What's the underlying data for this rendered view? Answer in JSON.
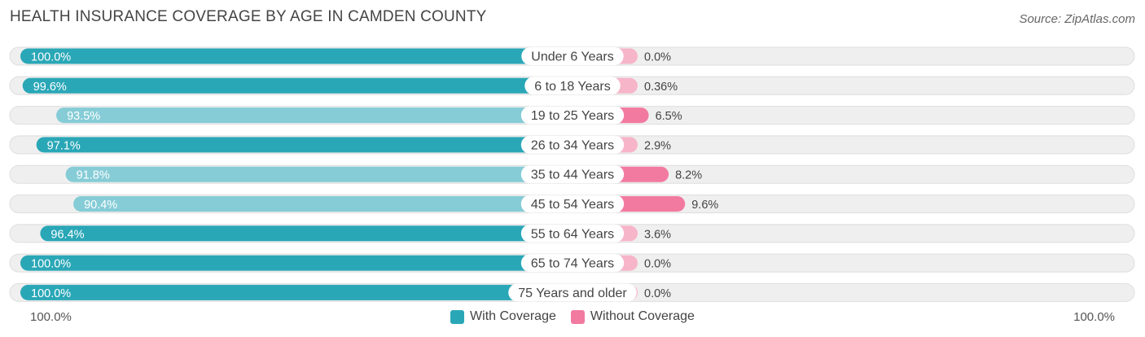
{
  "header": {
    "title": "HEALTH INSURANCE COVERAGE BY AGE IN CAMDEN COUNTY",
    "source": "Source: ZipAtlas.com"
  },
  "colors": {
    "with_strong": "#2aa7b7",
    "with_light": "#85ccd6",
    "without_strong": "#f27aa0",
    "without_light": "#f7b5c9",
    "row_bg": "#efefef",
    "row_border": "#dedede"
  },
  "chart_data": {
    "type": "bar",
    "orientation": "horizontal-diverging",
    "title": "HEALTH INSURANCE COVERAGE BY AGE IN CAMDEN COUNTY",
    "categories": [
      "Under 6 Years",
      "6 to 18 Years",
      "19 to 25 Years",
      "26 to 34 Years",
      "35 to 44 Years",
      "45 to 54 Years",
      "55 to 64 Years",
      "65 to 74 Years",
      "75 Years and older"
    ],
    "series": [
      {
        "name": "With Coverage",
        "values": [
          100.0,
          99.6,
          93.5,
          97.1,
          91.8,
          90.4,
          96.4,
          100.0,
          100.0
        ],
        "labels": [
          "100.0%",
          "99.6%",
          "93.5%",
          "97.1%",
          "91.8%",
          "90.4%",
          "96.4%",
          "100.0%",
          "100.0%"
        ]
      },
      {
        "name": "Without Coverage",
        "values": [
          0.0,
          0.36,
          6.5,
          2.9,
          8.2,
          9.6,
          3.6,
          0.0,
          0.0
        ],
        "labels": [
          "0.0%",
          "0.36%",
          "6.5%",
          "2.9%",
          "8.2%",
          "9.6%",
          "3.6%",
          "0.0%",
          "0.0%"
        ]
      }
    ],
    "axis": {
      "left_label": "100.0%",
      "right_label": "100.0%"
    },
    "legend": [
      "With Coverage",
      "Without Coverage"
    ],
    "legend_position": "bottom-center"
  }
}
